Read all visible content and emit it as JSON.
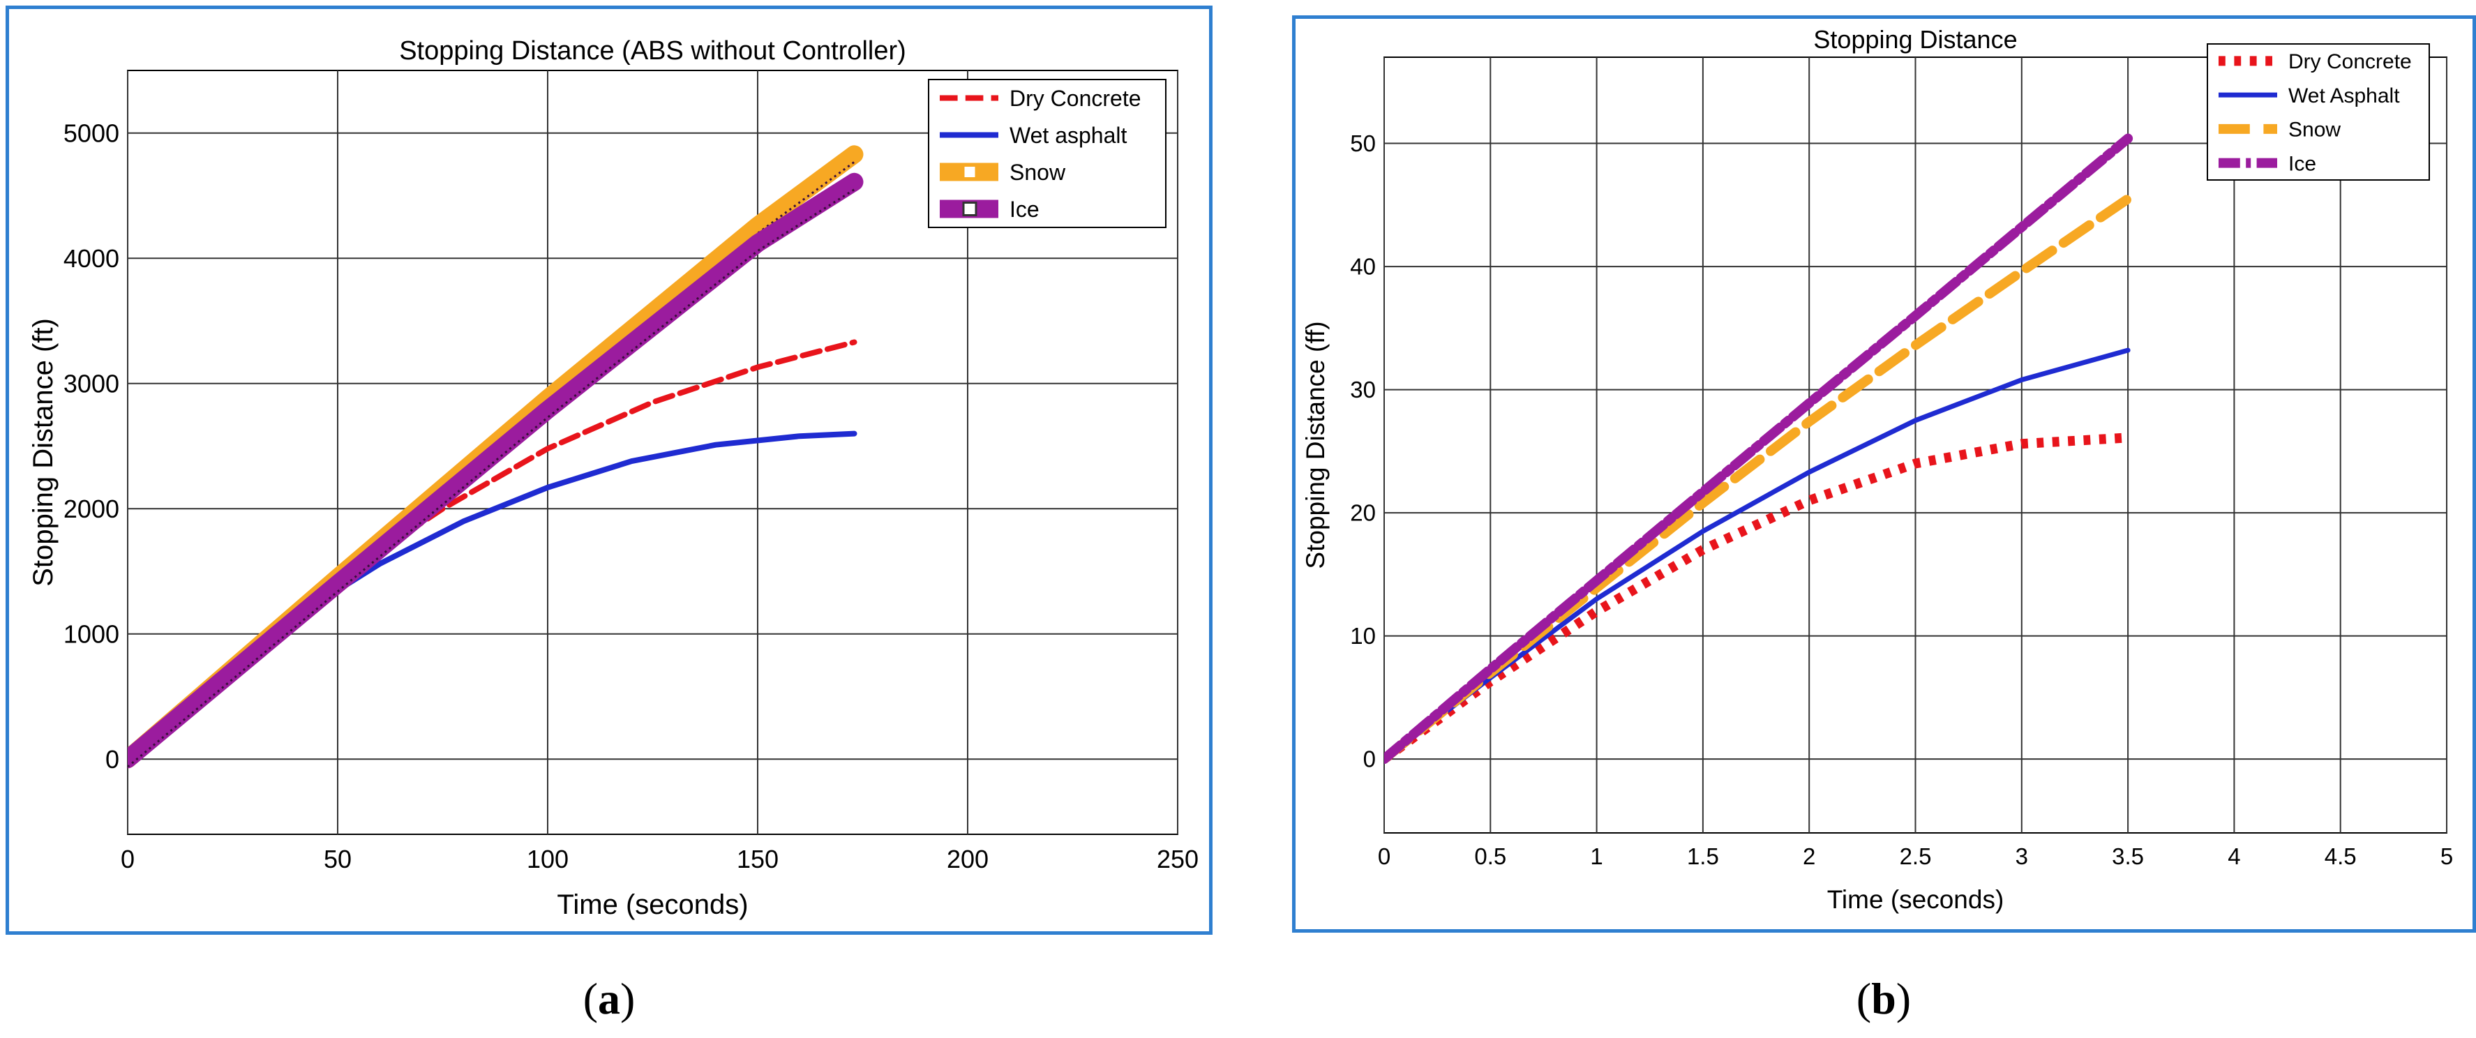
{
  "charts": [
    {
      "id": "a",
      "title": "Stopping Distance (ABS without Controller)",
      "xlabel": "Time (seconds)",
      "ylabel": "Stopping Distance (ft)",
      "caption": {
        "open": "(",
        "letter": "a",
        "close": ")"
      }
    },
    {
      "id": "b",
      "title": "Stopping Distance",
      "xlabel": "Time (seconds)",
      "ylabel": "Stopping Distance (ff)",
      "caption": {
        "open": "(",
        "letter": "b",
        "close": ")"
      }
    }
  ],
  "colors": {
    "frame": "#2f7fd0",
    "red": "#e8141b",
    "blue": "#1f2bd1",
    "orange": "#f7a823",
    "purple": "#9b1c9e",
    "grid": "#333333"
  },
  "chart_data": [
    {
      "type": "line",
      "title": "Stopping Distance (ABS without Controller)",
      "xlabel": "Time (seconds)",
      "ylabel": "Stopping Distance (ft)",
      "xlim": [
        0,
        250
      ],
      "ylim": [
        -600,
        5500
      ],
      "xticks": [
        0,
        50,
        100,
        150,
        200,
        250
      ],
      "yticks": [
        0,
        1000,
        2000,
        3000,
        4000,
        5000
      ],
      "grid": true,
      "legend_position": "top-right",
      "series": [
        {
          "name": "Dry Concrete",
          "color": "#e8141b",
          "style": "dashed",
          "width": "medium",
          "x": [
            0,
            25,
            50,
            75,
            100,
            125,
            150,
            173
          ],
          "y": [
            0,
            720,
            1440,
            2000,
            2480,
            2850,
            3130,
            3330
          ]
        },
        {
          "name": "Wet asphalt",
          "color": "#1f2bd1",
          "style": "solid",
          "width": "medium",
          "x": [
            0,
            20,
            40,
            60,
            80,
            100,
            120,
            140,
            160,
            173
          ],
          "y": [
            0,
            600,
            1140,
            1560,
            1900,
            2170,
            2380,
            2510,
            2580,
            2600
          ]
        },
        {
          "name": "Snow",
          "color": "#f7a823",
          "style": "solid-marker",
          "width": "thick",
          "x": [
            0,
            50,
            100,
            150,
            173
          ],
          "y": [
            0,
            1450,
            2880,
            4260,
            4830
          ]
        },
        {
          "name": "Ice",
          "color": "#9b1c9e",
          "style": "solid-marker",
          "width": "thick",
          "x": [
            0,
            50,
            100,
            150,
            173
          ],
          "y": [
            0,
            1400,
            2790,
            4120,
            4610
          ]
        }
      ]
    },
    {
      "type": "line",
      "title": "Stopping Distance",
      "xlabel": "Time (seconds)",
      "ylabel": "Stopping Distance (ff)",
      "xlim": [
        0,
        5
      ],
      "ylim": [
        -6,
        57
      ],
      "xticks": [
        0,
        0.5,
        1,
        1.5,
        2,
        2.5,
        3,
        3.5,
        4,
        4.5,
        5
      ],
      "yticks": [
        0,
        10,
        20,
        30,
        40,
        50
      ],
      "grid": true,
      "legend_position": "top-right",
      "series": [
        {
          "name": "Dry Concrete",
          "color": "#e8141b",
          "style": "dotted",
          "width": "thick",
          "x": [
            0,
            0.5,
            1,
            1.5,
            2,
            2.5,
            3,
            3.5
          ],
          "y": [
            0,
            6.3,
            12,
            17,
            21,
            24,
            25.6,
            26.1
          ]
        },
        {
          "name": "Wet Asphalt",
          "color": "#1f2bd1",
          "style": "solid",
          "width": "medium",
          "x": [
            0,
            0.5,
            1,
            1.5,
            2,
            2.5,
            3,
            3.5
          ],
          "y": [
            0,
            6.6,
            13,
            18.5,
            23.3,
            27.5,
            30.8,
            33.2
          ]
        },
        {
          "name": "Snow",
          "color": "#f7a823",
          "style": "dashed",
          "width": "thick",
          "x": [
            0,
            0.5,
            1,
            1.5,
            2,
            2.5,
            3,
            3.5
          ],
          "y": [
            0,
            7,
            13.9,
            20.8,
            27.4,
            33.6,
            39.6,
            45.5
          ]
        },
        {
          "name": "Ice",
          "color": "#9b1c9e",
          "style": "dash-dot",
          "width": "thick",
          "x": [
            0,
            0.5,
            1,
            1.5,
            2,
            2.5,
            3,
            3.5
          ],
          "y": [
            0,
            7.3,
            14.5,
            21.7,
            28.9,
            36,
            43.2,
            50.4
          ]
        }
      ]
    }
  ]
}
